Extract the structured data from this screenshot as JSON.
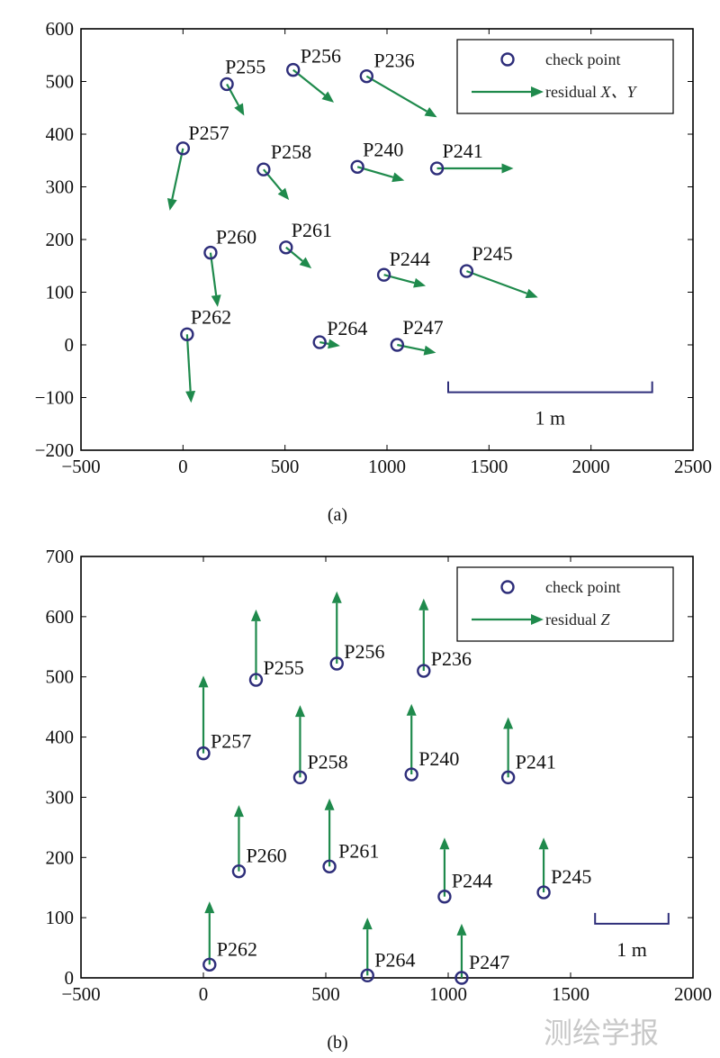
{
  "chart_data": [
    {
      "type": "scatter",
      "caption": "(a)",
      "xlim": [
        -500,
        2500
      ],
      "ylim": [
        -200,
        600
      ],
      "xticks": [
        -500,
        0,
        500,
        1000,
        1500,
        2000,
        2500
      ],
      "yticks": [
        -200,
        -100,
        0,
        100,
        200,
        300,
        400,
        500,
        600
      ],
      "legend": {
        "position": "top-right",
        "marker_label": "check point",
        "arrow_label_prefix": "residual ",
        "arrow_label_vars": "X、Y"
      },
      "scale_bar": {
        "label": "1 m",
        "x_from": 1300,
        "x_to": 2300,
        "y": -90
      },
      "points": [
        {
          "name": "P255",
          "x": 215,
          "y": 495,
          "end_x": 300,
          "end_y": 435
        },
        {
          "name": "P256",
          "x": 540,
          "y": 522,
          "end_x": 740,
          "end_y": 460
        },
        {
          "name": "P236",
          "x": 900,
          "y": 510,
          "end_x": 1245,
          "end_y": 432
        },
        {
          "name": "P257",
          "x": 0,
          "y": 373,
          "end_x": -65,
          "end_y": 255
        },
        {
          "name": "P258",
          "x": 395,
          "y": 333,
          "end_x": 520,
          "end_y": 275
        },
        {
          "name": "P240",
          "x": 855,
          "y": 338,
          "end_x": 1085,
          "end_y": 312
        },
        {
          "name": "P241",
          "x": 1245,
          "y": 335,
          "end_x": 1620,
          "end_y": 335
        },
        {
          "name": "P260",
          "x": 135,
          "y": 175,
          "end_x": 170,
          "end_y": 72
        },
        {
          "name": "P261",
          "x": 505,
          "y": 185,
          "end_x": 630,
          "end_y": 145
        },
        {
          "name": "P244",
          "x": 985,
          "y": 133,
          "end_x": 1190,
          "end_y": 112
        },
        {
          "name": "P245",
          "x": 1390,
          "y": 140,
          "end_x": 1740,
          "end_y": 90
        },
        {
          "name": "P262",
          "x": 20,
          "y": 20,
          "end_x": 40,
          "end_y": -110
        },
        {
          "name": "P264",
          "x": 670,
          "y": 5,
          "end_x": 770,
          "end_y": -2
        },
        {
          "name": "P247",
          "x": 1050,
          "y": 0,
          "end_x": 1240,
          "end_y": -15
        }
      ]
    },
    {
      "type": "scatter",
      "caption": "(b)",
      "xlim": [
        -500,
        2000
      ],
      "ylim": [
        0,
        700
      ],
      "xticks": [
        -500,
        0,
        500,
        1000,
        1500,
        2000
      ],
      "yticks": [
        0,
        100,
        200,
        300,
        400,
        500,
        600,
        700
      ],
      "legend": {
        "position": "top-right",
        "marker_label": "check point",
        "arrow_label_prefix": "residual ",
        "arrow_label_vars": "Z"
      },
      "scale_bar": {
        "label": "1 m",
        "x_from": 1600,
        "x_to": 1900,
        "y": 90
      },
      "points": [
        {
          "name": "P255",
          "x": 215,
          "y": 495,
          "end_x": 215,
          "end_y": 612
        },
        {
          "name": "P256",
          "x": 545,
          "y": 522,
          "end_x": 545,
          "end_y": 642
        },
        {
          "name": "P236",
          "x": 900,
          "y": 510,
          "end_x": 900,
          "end_y": 630
        },
        {
          "name": "P257",
          "x": 0,
          "y": 373,
          "end_x": 0,
          "end_y": 502
        },
        {
          "name": "P258",
          "x": 395,
          "y": 333,
          "end_x": 395,
          "end_y": 453
        },
        {
          "name": "P240",
          "x": 850,
          "y": 338,
          "end_x": 850,
          "end_y": 455
        },
        {
          "name": "P241",
          "x": 1245,
          "y": 333,
          "end_x": 1245,
          "end_y": 433
        },
        {
          "name": "P260",
          "x": 145,
          "y": 177,
          "end_x": 145,
          "end_y": 287
        },
        {
          "name": "P261",
          "x": 515,
          "y": 185,
          "end_x": 515,
          "end_y": 298
        },
        {
          "name": "P244",
          "x": 985,
          "y": 135,
          "end_x": 985,
          "end_y": 233
        },
        {
          "name": "P245",
          "x": 1390,
          "y": 142,
          "end_x": 1390,
          "end_y": 233
        },
        {
          "name": "P262",
          "x": 25,
          "y": 22,
          "end_x": 25,
          "end_y": 127
        },
        {
          "name": "P264",
          "x": 670,
          "y": 4,
          "end_x": 670,
          "end_y": 100
        },
        {
          "name": "P247",
          "x": 1055,
          "y": 0,
          "end_x": 1055,
          "end_y": 90
        }
      ]
    }
  ],
  "watermark": "测绘学报",
  "colors": {
    "arrow": "#1f8a4c",
    "marker": "#2e2e7a",
    "scalebar": "#2e2e7a",
    "axes": "#000000"
  }
}
